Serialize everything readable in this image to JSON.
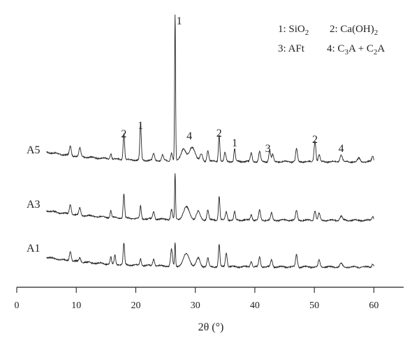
{
  "chart_data": {
    "type": "line",
    "title": "",
    "xlabel": "2θ (°)",
    "ylabel": "",
    "xlim": [
      0,
      65
    ],
    "xticks": [
      0,
      10,
      20,
      30,
      40,
      50,
      60
    ],
    "grid": false,
    "legend": [
      {
        "id": "1",
        "label": "SiO2"
      },
      {
        "id": "2",
        "label": "Ca(OH)2"
      },
      {
        "id": "3",
        "label": "AFt"
      },
      {
        "id": "4",
        "label": "C3A + C2A"
      }
    ],
    "series": [
      {
        "name": "A5",
        "baseline": 0,
        "peaks": [
          {
            "x": 9.0,
            "h": 14,
            "w": 0.15
          },
          {
            "x": 10.6,
            "h": 12,
            "w": 0.15
          },
          {
            "x": 15.8,
            "h": 8,
            "w": 0.12
          },
          {
            "x": 18.0,
            "h": 38,
            "w": 0.12
          },
          {
            "x": 20.8,
            "h": 52,
            "w": 0.12
          },
          {
            "x": 23.0,
            "h": 10,
            "w": 0.15
          },
          {
            "x": 24.5,
            "h": 8,
            "w": 0.15
          },
          {
            "x": 26.0,
            "h": 12,
            "w": 0.15
          },
          {
            "x": 26.6,
            "h": 210,
            "w": 0.08
          },
          {
            "x": 28.0,
            "h": 18,
            "w": 0.4
          },
          {
            "x": 29.5,
            "h": 20,
            "w": 0.5
          },
          {
            "x": 31.0,
            "h": 10,
            "w": 0.2
          },
          {
            "x": 32.1,
            "h": 16,
            "w": 0.15
          },
          {
            "x": 34.0,
            "h": 38,
            "w": 0.12
          },
          {
            "x": 35.0,
            "h": 12,
            "w": 0.15
          },
          {
            "x": 36.6,
            "h": 18,
            "w": 0.12
          },
          {
            "x": 39.4,
            "h": 12,
            "w": 0.15
          },
          {
            "x": 40.8,
            "h": 14,
            "w": 0.15
          },
          {
            "x": 42.5,
            "h": 16,
            "w": 0.15
          },
          {
            "x": 43.0,
            "h": 10,
            "w": 0.15
          },
          {
            "x": 47.0,
            "h": 18,
            "w": 0.15
          },
          {
            "x": 50.1,
            "h": 30,
            "w": 0.15
          },
          {
            "x": 50.8,
            "h": 10,
            "w": 0.15
          },
          {
            "x": 54.5,
            "h": 10,
            "w": 0.2
          },
          {
            "x": 57.5,
            "h": 5,
            "w": 0.2
          },
          {
            "x": 59.8,
            "h": 8,
            "w": 0.15
          }
        ]
      },
      {
        "name": "A3",
        "baseline": 0,
        "peaks": [
          {
            "x": 9.0,
            "h": 14,
            "w": 0.15
          },
          {
            "x": 10.6,
            "h": 10,
            "w": 0.15
          },
          {
            "x": 15.8,
            "h": 10,
            "w": 0.12
          },
          {
            "x": 18.0,
            "h": 34,
            "w": 0.12
          },
          {
            "x": 20.8,
            "h": 18,
            "w": 0.12
          },
          {
            "x": 23.0,
            "h": 10,
            "w": 0.15
          },
          {
            "x": 26.0,
            "h": 14,
            "w": 0.15
          },
          {
            "x": 26.6,
            "h": 66,
            "w": 0.08
          },
          {
            "x": 28.5,
            "h": 18,
            "w": 0.5
          },
          {
            "x": 30.5,
            "h": 12,
            "w": 0.3
          },
          {
            "x": 32.1,
            "h": 14,
            "w": 0.15
          },
          {
            "x": 34.0,
            "h": 34,
            "w": 0.12
          },
          {
            "x": 35.2,
            "h": 12,
            "w": 0.15
          },
          {
            "x": 36.6,
            "h": 12,
            "w": 0.12
          },
          {
            "x": 39.4,
            "h": 8,
            "w": 0.15
          },
          {
            "x": 40.8,
            "h": 14,
            "w": 0.15
          },
          {
            "x": 42.8,
            "h": 10,
            "w": 0.15
          },
          {
            "x": 47.0,
            "h": 14,
            "w": 0.15
          },
          {
            "x": 50.1,
            "h": 14,
            "w": 0.15
          },
          {
            "x": 50.8,
            "h": 10,
            "w": 0.15
          },
          {
            "x": 54.5,
            "h": 6,
            "w": 0.2
          },
          {
            "x": 59.8,
            "h": 6,
            "w": 0.15
          }
        ]
      },
      {
        "name": "A1",
        "baseline": 0,
        "peaks": [
          {
            "x": 9.0,
            "h": 14,
            "w": 0.15
          },
          {
            "x": 10.6,
            "h": 6,
            "w": 0.15
          },
          {
            "x": 15.8,
            "h": 10,
            "w": 0.12
          },
          {
            "x": 16.5,
            "h": 14,
            "w": 0.12
          },
          {
            "x": 18.0,
            "h": 30,
            "w": 0.12
          },
          {
            "x": 20.8,
            "h": 10,
            "w": 0.12
          },
          {
            "x": 23.0,
            "h": 10,
            "w": 0.15
          },
          {
            "x": 26.0,
            "h": 24,
            "w": 0.15
          },
          {
            "x": 26.6,
            "h": 34,
            "w": 0.08
          },
          {
            "x": 28.5,
            "h": 18,
            "w": 0.5
          },
          {
            "x": 30.5,
            "h": 12,
            "w": 0.3
          },
          {
            "x": 32.1,
            "h": 12,
            "w": 0.15
          },
          {
            "x": 34.0,
            "h": 32,
            "w": 0.12
          },
          {
            "x": 35.2,
            "h": 20,
            "w": 0.15
          },
          {
            "x": 39.4,
            "h": 8,
            "w": 0.15
          },
          {
            "x": 40.8,
            "h": 14,
            "w": 0.15
          },
          {
            "x": 42.8,
            "h": 10,
            "w": 0.15
          },
          {
            "x": 47.0,
            "h": 18,
            "w": 0.15
          },
          {
            "x": 50.8,
            "h": 10,
            "w": 0.15
          },
          {
            "x": 54.5,
            "h": 5,
            "w": 0.2
          },
          {
            "x": 59.8,
            "h": 5,
            "w": 0.15
          }
        ]
      }
    ],
    "peak_labels": [
      {
        "text": "2",
        "x": 18.0,
        "series": "A5"
      },
      {
        "text": "1",
        "x": 20.8,
        "series": "A5"
      },
      {
        "text": "1",
        "x": 27.3,
        "series": "A5",
        "top": true
      },
      {
        "text": "4",
        "x": 29.0,
        "series": "A5"
      },
      {
        "text": "2",
        "x": 34.0,
        "series": "A5"
      },
      {
        "text": "1",
        "x": 36.6,
        "series": "A5"
      },
      {
        "text": "3",
        "x": 42.2,
        "series": "A5"
      },
      {
        "text": "2",
        "x": 50.1,
        "series": "A5"
      },
      {
        "text": "4",
        "x": 54.5,
        "series": "A5"
      }
    ]
  }
}
